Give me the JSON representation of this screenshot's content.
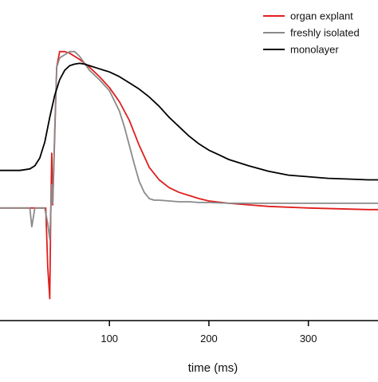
{
  "chart_data": {
    "type": "line",
    "title": "",
    "xlabel": "time (ms)",
    "ylabel": "",
    "xlim": [
      -10,
      370
    ],
    "ylim": [
      -0.72,
      1.33
    ],
    "x_ticks": [
      100,
      200,
      300
    ],
    "x_tick_labels": [
      "100",
      "200",
      "300"
    ],
    "grid": false,
    "legend_position": "top-right",
    "series": [
      {
        "name": "organ explant",
        "color": "#e01e1e",
        "x": [
          -10,
          25,
          36,
          38,
          40,
          41,
          42,
          43,
          47,
          50,
          55,
          60,
          70,
          80,
          90,
          100,
          110,
          120,
          130,
          140,
          150,
          160,
          170,
          180,
          190,
          200,
          220,
          240,
          260,
          280,
          300,
          330,
          360,
          370
        ],
        "y": [
          0.0,
          0.0,
          0.0,
          -0.38,
          -0.58,
          -0.05,
          0.35,
          0.02,
          0.9,
          1.0,
          1.0,
          0.99,
          0.95,
          0.9,
          0.84,
          0.77,
          0.68,
          0.56,
          0.4,
          0.26,
          0.18,
          0.13,
          0.1,
          0.08,
          0.06,
          0.045,
          0.03,
          0.02,
          0.01,
          0.005,
          0.0,
          -0.005,
          -0.01,
          -0.01
        ]
      },
      {
        "name": "freshly isolated",
        "color": "#8a8a8a",
        "x": [
          -10,
          10,
          20,
          22,
          25,
          30,
          35,
          38,
          40,
          42,
          43,
          45,
          47,
          50,
          60,
          65,
          70,
          80,
          90,
          100,
          110,
          115,
          120,
          125,
          130,
          135,
          140,
          145,
          150,
          160,
          170,
          180,
          190,
          200,
          220,
          240,
          260,
          280,
          300,
          330,
          360,
          370
        ],
        "y": [
          0.0,
          0.0,
          0.0,
          -0.12,
          0.0,
          0.0,
          0.0,
          -0.1,
          -0.2,
          0.15,
          0.03,
          0.5,
          0.9,
          0.96,
          1.0,
          1.0,
          0.97,
          0.88,
          0.82,
          0.75,
          0.62,
          0.52,
          0.4,
          0.28,
          0.17,
          0.1,
          0.06,
          0.05,
          0.05,
          0.045,
          0.04,
          0.04,
          0.035,
          0.035,
          0.03,
          0.03,
          0.03,
          0.03,
          0.03,
          0.03,
          0.03,
          0.03
        ]
      },
      {
        "name": "monolayer",
        "color": "#000000",
        "x": [
          -10,
          0,
          10,
          20,
          25,
          30,
          35,
          40,
          45,
          50,
          55,
          60,
          65,
          70,
          75,
          80,
          90,
          100,
          110,
          120,
          130,
          140,
          150,
          160,
          170,
          180,
          190,
          200,
          210,
          220,
          240,
          260,
          280,
          300,
          320,
          340,
          360,
          370
        ],
        "y": [
          0.24,
          0.24,
          0.24,
          0.25,
          0.27,
          0.32,
          0.42,
          0.58,
          0.72,
          0.82,
          0.88,
          0.91,
          0.92,
          0.925,
          0.92,
          0.91,
          0.89,
          0.87,
          0.84,
          0.8,
          0.76,
          0.71,
          0.65,
          0.58,
          0.52,
          0.46,
          0.41,
          0.37,
          0.34,
          0.31,
          0.27,
          0.235,
          0.21,
          0.2,
          0.19,
          0.185,
          0.18,
          0.18
        ]
      }
    ]
  }
}
